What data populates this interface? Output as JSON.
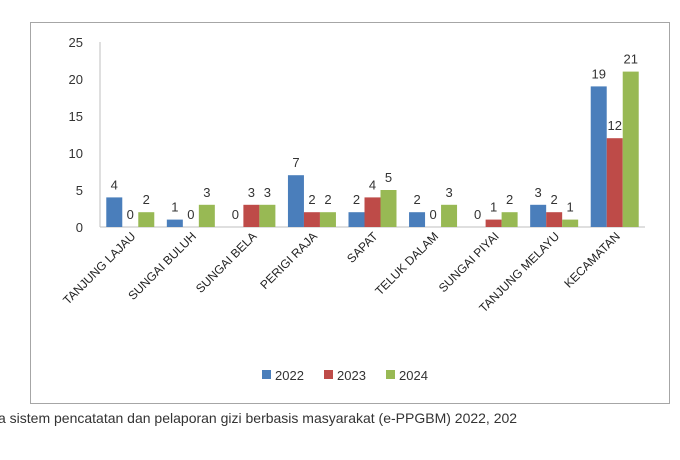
{
  "chart_data": {
    "type": "bar",
    "categories": [
      "TANJUNG LAJAU",
      "SUNGAI BULUH",
      "SUNGAI BELA",
      "PERIGI RAJA",
      "SAPAT",
      "TELUK DALAM",
      "SUNGAI PIYAI",
      "TANJUNG MELAYU",
      "KECAMATAN"
    ],
    "series": [
      {
        "name": "2022",
        "color": "#4a7ebb",
        "values": [
          4,
          1,
          0,
          7,
          2,
          2,
          0,
          3,
          19
        ]
      },
      {
        "name": "2023",
        "color": "#be4b48",
        "values": [
          0,
          0,
          3,
          2,
          4,
          0,
          1,
          2,
          12
        ]
      },
      {
        "name": "2024",
        "color": "#98b954",
        "values": [
          2,
          3,
          3,
          2,
          5,
          3,
          2,
          1,
          21
        ]
      }
    ],
    "ylim": [
      0,
      25
    ],
    "yticks": [
      0,
      5,
      10,
      15,
      20,
      25
    ],
    "grid": false,
    "legend": "bottom",
    "data_labels": true
  },
  "caption": "a sistem pencatatan dan pelaporan gizi berbasis masyarakat (e-PPGBM) 2022, 202"
}
